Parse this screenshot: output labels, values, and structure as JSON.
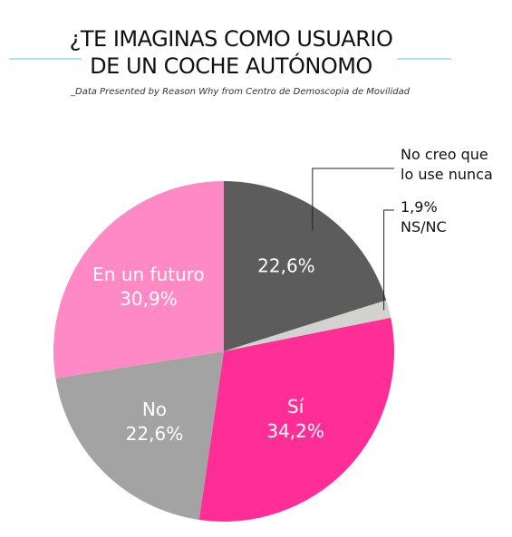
{
  "chart_data": {
    "type": "pie",
    "title": "¿TE IMAGINAS COMO USUARIO\nDE UN COCHE AUTÓNOMO",
    "subtitle": "_Data Presented by Reason Why from Centro de Demoscopia de Movilidad",
    "categories": [
      "No creo que\nlo use nunca",
      "NS/NC",
      "Sí",
      "No",
      "En un futuro"
    ],
    "values": [
      22.6,
      1.9,
      34.2,
      22.6,
      30.9
    ],
    "value_labels": [
      "22,6%",
      "1,9%",
      "34,2%",
      "22,6%",
      "30,9%"
    ],
    "colors": [
      "#5c5c5c",
      "#d2d2d0",
      "#ff2d96",
      "#a3a3a3",
      "#ff89c5"
    ]
  }
}
